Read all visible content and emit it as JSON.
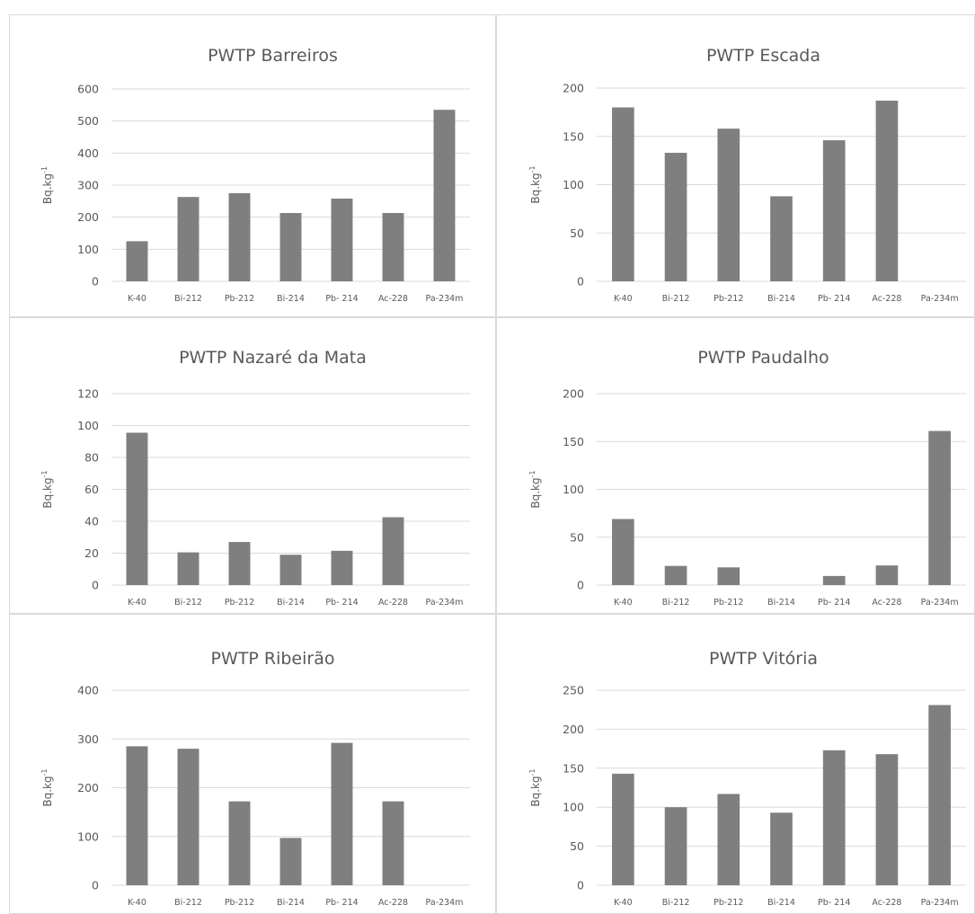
{
  "colors": {
    "bar": "#7f7f7f",
    "grid": "#d9d9d9",
    "text": "#595959",
    "border": "#d9d9d9"
  },
  "chart_data": [
    {
      "type": "bar",
      "title": "PWTP Barreiros",
      "ylabel": "Bq.kg-1",
      "ylabel_base": "Bq.kg",
      "ylabel_sup": "-1",
      "categories": [
        "K-40",
        "Bi-212",
        "Pb-212",
        "Bi-214",
        "Pb- 214",
        "Ac-228",
        "Pa-234m"
      ],
      "values": [
        125,
        263,
        275,
        213,
        258,
        213,
        535
      ],
      "ylim": [
        0,
        600
      ],
      "yticks": [
        "0",
        "100",
        "200",
        "300",
        "400",
        "500",
        "600"
      ],
      "grid": true
    },
    {
      "type": "bar",
      "title": "PWTP Escada",
      "ylabel": "Bq.kg-1",
      "ylabel_base": "Bq.kg",
      "ylabel_sup": "-1",
      "categories": [
        "K-40",
        "Bi-212",
        "Pb-212",
        "Bi-214",
        "Pb- 214",
        "Ac-228",
        "Pa-234m"
      ],
      "values": [
        180,
        133,
        158,
        88,
        146,
        187,
        0
      ],
      "ylim": [
        0,
        200
      ],
      "yticks": [
        "0",
        "50",
        "100",
        "150",
        "200"
      ],
      "grid": true
    },
    {
      "type": "bar",
      "title": "PWTP Nazaré da Mata",
      "ylabel": "Bq.kg-1",
      "ylabel_base": "Bq.kg",
      "ylabel_sup": "-1",
      "categories": [
        "K-40",
        "Bi-212",
        "Pb-212",
        "Bi-214",
        "Pb- 214",
        "Ac-228",
        "Pa-234m"
      ],
      "values": [
        95.5,
        20.5,
        27,
        19,
        21.5,
        42.5,
        0
      ],
      "ylim": [
        0,
        120
      ],
      "yticks": [
        "0",
        "20",
        "40",
        "60",
        "80",
        "100",
        "120"
      ],
      "grid": true
    },
    {
      "type": "bar",
      "title": "PWTP Paudalho",
      "ylabel": "Bq.kg-1",
      "ylabel_base": "Bq.kg",
      "ylabel_sup": "-1",
      "categories": [
        "K-40",
        "Bi-212",
        "Pb-212",
        "Bi-214",
        "Pb- 214",
        "Ac-228",
        "Pa-234m"
      ],
      "values": [
        69,
        20,
        18.5,
        0,
        9.5,
        20.5,
        161
      ],
      "ylim": [
        0,
        200
      ],
      "yticks": [
        "0",
        "50",
        "100",
        "150",
        "200"
      ],
      "grid": true
    },
    {
      "type": "bar",
      "title": "PWTP Ribeirão",
      "ylabel": "Bq.kg-1",
      "ylabel_base": "Bq.kg",
      "ylabel_sup": "-1",
      "categories": [
        "K-40",
        "Bi-212",
        "Pb-212",
        "Bi-214",
        "Pb- 214",
        "Ac-228",
        "Pa-234m"
      ],
      "values": [
        285,
        280,
        172,
        97,
        292,
        172,
        0
      ],
      "ylim": [
        0,
        400
      ],
      "yticks": [
        "0",
        "100",
        "200",
        "300",
        "400"
      ],
      "grid": true
    },
    {
      "type": "bar",
      "title": "PWTP Vitória",
      "ylabel": "Bq.kg-1",
      "ylabel_base": "Bq.kg",
      "ylabel_sup": "-1",
      "categories": [
        "K-40",
        "Bi-212",
        "Pb-212",
        "Bi-214",
        "Pb- 214",
        "Ac-228",
        "Pa-234m"
      ],
      "values": [
        143,
        100,
        117,
        93,
        173,
        168,
        231
      ],
      "ylim": [
        0,
        250
      ],
      "yticks": [
        "0",
        "50",
        "100",
        "150",
        "200",
        "250"
      ],
      "grid": true
    }
  ]
}
